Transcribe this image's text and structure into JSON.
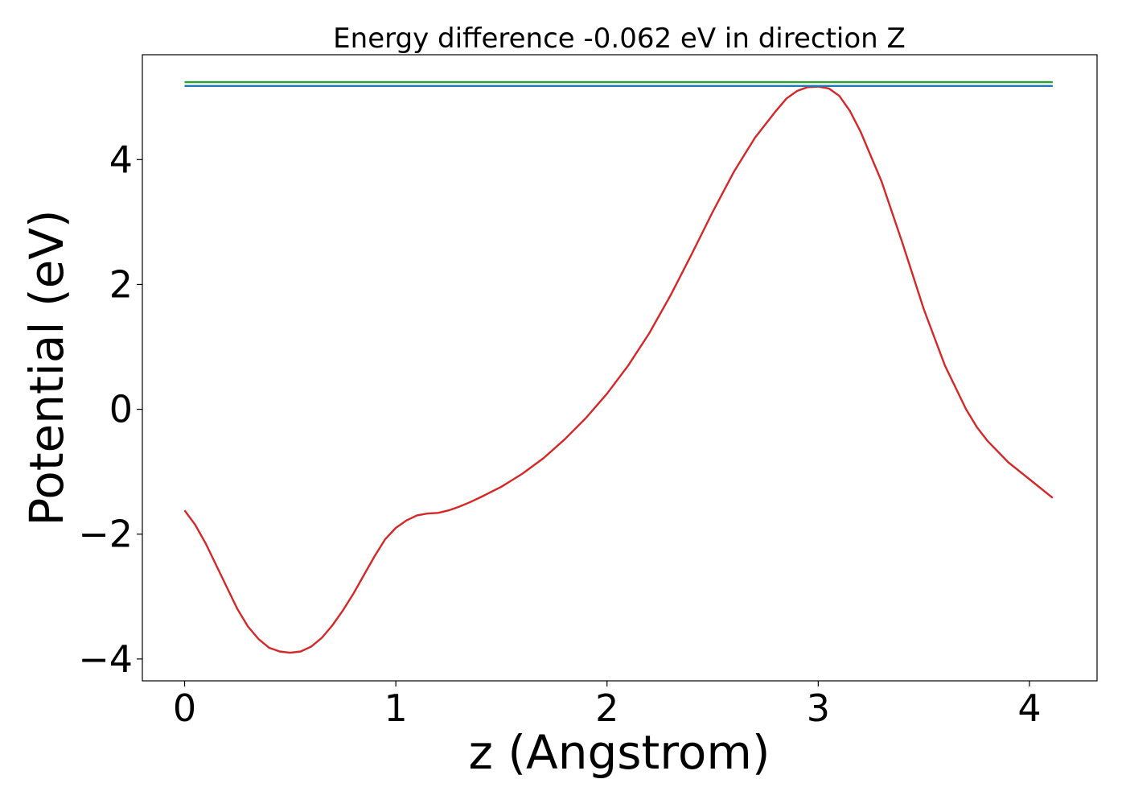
{
  "chart_data": {
    "type": "line",
    "title": "Energy difference -0.062 eV in direction Z",
    "xlabel": "z (Angstrom)",
    "ylabel": "Potential (eV)",
    "xlim": [
      -0.2,
      4.32
    ],
    "ylim": [
      -4.35,
      5.68
    ],
    "xticks": [
      0,
      1,
      2,
      3,
      4
    ],
    "xtick_labels": [
      "0",
      "1",
      "2",
      "3",
      "4"
    ],
    "yticks": [
      -4,
      -2,
      0,
      2,
      4
    ],
    "ytick_labels": [
      "−4",
      "−2",
      "0",
      "2",
      "4"
    ],
    "grid": false,
    "series": [
      {
        "color": "#d62728",
        "x": [
          0,
          0.05,
          0.1,
          0.15,
          0.2,
          0.25,
          0.3,
          0.35,
          0.4,
          0.45,
          0.5,
          0.55,
          0.6,
          0.65,
          0.7,
          0.75,
          0.8,
          0.85,
          0.9,
          0.95,
          1.0,
          1.05,
          1.1,
          1.15,
          1.2,
          1.25,
          1.3,
          1.35,
          1.4,
          1.5,
          1.6,
          1.7,
          1.8,
          1.9,
          2.0,
          2.1,
          2.2,
          2.3,
          2.4,
          2.5,
          2.6,
          2.7,
          2.8,
          2.85,
          2.9,
          2.95,
          3.0,
          3.05,
          3.1,
          3.15,
          3.2,
          3.3,
          3.4,
          3.5,
          3.6,
          3.7,
          3.75,
          3.8,
          3.9,
          4.0,
          4.11
        ],
        "y": [
          -1.62,
          -1.85,
          -2.15,
          -2.5,
          -2.85,
          -3.2,
          -3.48,
          -3.68,
          -3.82,
          -3.88,
          -3.9,
          -3.88,
          -3.8,
          -3.66,
          -3.46,
          -3.22,
          -2.95,
          -2.65,
          -2.35,
          -2.08,
          -1.9,
          -1.78,
          -1.7,
          -1.67,
          -1.66,
          -1.62,
          -1.56,
          -1.49,
          -1.41,
          -1.24,
          -1.03,
          -0.78,
          -0.48,
          -0.14,
          0.25,
          0.7,
          1.22,
          1.82,
          2.48,
          3.16,
          3.8,
          4.35,
          4.78,
          4.98,
          5.1,
          5.16,
          5.17,
          5.14,
          5.02,
          4.78,
          4.45,
          3.65,
          2.65,
          1.6,
          0.7,
          0.0,
          -0.28,
          -0.5,
          -0.85,
          -1.12,
          -1.42
        ]
      },
      {
        "color": "#2ca02c",
        "x": [
          0,
          4.11
        ],
        "y": [
          5.24,
          5.24
        ]
      },
      {
        "color": "#1f77b4",
        "x": [
          0,
          4.11
        ],
        "y": [
          5.18,
          5.18
        ]
      }
    ]
  }
}
